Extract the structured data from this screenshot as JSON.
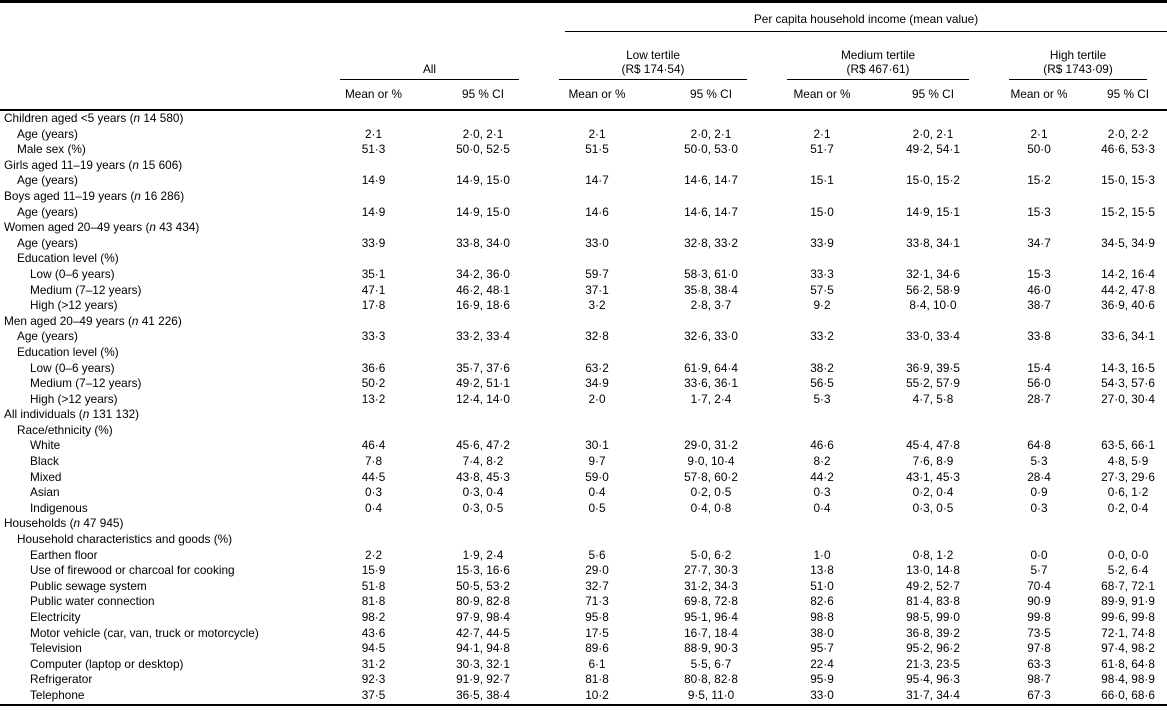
{
  "meta": {
    "n_symbol": "n"
  },
  "header": {
    "group_title": "Per capita household income (mean value)",
    "groups": [
      {
        "label": "All",
        "sub": ""
      },
      {
        "label": "Low tertile",
        "sub": "(R$ 174·54)"
      },
      {
        "label": "Medium tertile",
        "sub": "(R$ 467·61)"
      },
      {
        "label": "High tertile",
        "sub": "(R$ 1743·09)"
      }
    ],
    "stat_cols": [
      "Mean or %",
      "95 % CI"
    ]
  },
  "rows": [
    {
      "label": "Children aged <5 years",
      "n": "14 580",
      "indent": 0,
      "values": null
    },
    {
      "label": "Age (years)",
      "indent": 1,
      "values": [
        "2·1",
        "2·0, 2·1",
        "2·1",
        "2·0, 2·1",
        "2·1",
        "2·0, 2·1",
        "2·1",
        "2·0, 2·2"
      ]
    },
    {
      "label": "Male sex (%)",
      "indent": 1,
      "values": [
        "51·3",
        "50·0, 52·5",
        "51·5",
        "50·0, 53·0",
        "51·7",
        "49·2, 54·1",
        "50·0",
        "46·6, 53·3"
      ]
    },
    {
      "label": "Girls aged 11–19 years",
      "n": "15 606",
      "indent": 0,
      "values": null
    },
    {
      "label": "Age (years)",
      "indent": 1,
      "values": [
        "14·9",
        "14·9, 15·0",
        "14·7",
        "14·6, 14·7",
        "15·1",
        "15·0, 15·2",
        "15·2",
        "15·0, 15·3"
      ]
    },
    {
      "label": "Boys aged 11–19 years",
      "n": "16 286",
      "indent": 0,
      "values": null
    },
    {
      "label": "Age (years)",
      "indent": 1,
      "values": [
        "14·9",
        "14·9, 15·0",
        "14·6",
        "14·6, 14·7",
        "15·0",
        "14·9, 15·1",
        "15·3",
        "15·2, 15·5"
      ]
    },
    {
      "label": "Women aged 20–49 years",
      "n": "43 434",
      "indent": 0,
      "values": null
    },
    {
      "label": "Age (years)",
      "indent": 1,
      "values": [
        "33·9",
        "33·8, 34·0",
        "33·0",
        "32·8, 33·2",
        "33·9",
        "33·8, 34·1",
        "34·7",
        "34·5, 34·9"
      ]
    },
    {
      "label": "Education level (%)",
      "indent": 1,
      "values": null
    },
    {
      "label": "Low (0–6 years)",
      "indent": 2,
      "values": [
        "35·1",
        "34·2, 36·0",
        "59·7",
        "58·3, 61·0",
        "33·3",
        "32·1, 34·6",
        "15·3",
        "14·2, 16·4"
      ]
    },
    {
      "label": "Medium (7–12 years)",
      "indent": 2,
      "values": [
        "47·1",
        "46·2, 48·1",
        "37·1",
        "35·8, 38·4",
        "57·5",
        "56·2, 58·9",
        "46·0",
        "44·2, 47·8"
      ]
    },
    {
      "label": "High (>12 years)",
      "indent": 2,
      "values": [
        "17·8",
        "16·9, 18·6",
        "3·2",
        "2·8, 3·7",
        "9·2",
        "8·4, 10·0",
        "38·7",
        "36·9, 40·6"
      ]
    },
    {
      "label": "Men aged 20–49 years",
      "n": "41 226",
      "indent": 0,
      "values": null
    },
    {
      "label": "Age (years)",
      "indent": 1,
      "values": [
        "33·3",
        "33·2, 33·4",
        "32·8",
        "32·6, 33·0",
        "33·2",
        "33·0, 33·4",
        "33·8",
        "33·6, 34·1"
      ]
    },
    {
      "label": "Education level (%)",
      "indent": 1,
      "values": null
    },
    {
      "label": "Low (0–6 years)",
      "indent": 2,
      "values": [
        "36·6",
        "35·7, 37·6",
        "63·2",
        "61·9, 64·4",
        "38·2",
        "36·9, 39·5",
        "15·4",
        "14·3, 16·5"
      ]
    },
    {
      "label": "Medium (7–12 years)",
      "indent": 2,
      "values": [
        "50·2",
        "49·2, 51·1",
        "34·9",
        "33·6, 36·1",
        "56·5",
        "55·2, 57·9",
        "56·0",
        "54·3, 57·6"
      ]
    },
    {
      "label": "High (>12 years)",
      "indent": 2,
      "values": [
        "13·2",
        "12·4, 14·0",
        "2·0",
        "1·7, 2·4",
        "5·3",
        "4·7, 5·8",
        "28·7",
        "27·0, 30·4"
      ]
    },
    {
      "label": "All individuals",
      "n": "131 132",
      "indent": 0,
      "values": null
    },
    {
      "label": "Race/ethnicity (%)",
      "indent": 1,
      "values": null
    },
    {
      "label": "White",
      "indent": 2,
      "values": [
        "46·4",
        "45·6, 47·2",
        "30·1",
        "29·0, 31·2",
        "46·6",
        "45·4, 47·8",
        "64·8",
        "63·5, 66·1"
      ]
    },
    {
      "label": "Black",
      "indent": 2,
      "values": [
        "7·8",
        "7·4, 8·2",
        "9·7",
        "9·0, 10·4",
        "8·2",
        "7·6, 8·9",
        "5·3",
        "4·8, 5·9"
      ]
    },
    {
      "label": "Mixed",
      "indent": 2,
      "values": [
        "44·5",
        "43·8, 45·3",
        "59·0",
        "57·8, 60·2",
        "44·2",
        "43·1, 45·3",
        "28·4",
        "27·3, 29·6"
      ]
    },
    {
      "label": "Asian",
      "indent": 2,
      "values": [
        "0·3",
        "0·3, 0·4",
        "0·4",
        "0·2, 0·5",
        "0·3",
        "0·2, 0·4",
        "0·9",
        "0·6, 1·2"
      ]
    },
    {
      "label": "Indigenous",
      "indent": 2,
      "values": [
        "0·4",
        "0·3, 0·5",
        "0·5",
        "0·4, 0·8",
        "0·4",
        "0·3, 0·5",
        "0·3",
        "0·2, 0·4"
      ]
    },
    {
      "label": "Households",
      "n": "47 945",
      "indent": 0,
      "values": null
    },
    {
      "label": "Household characteristics and goods (%)",
      "indent": 1,
      "values": null
    },
    {
      "label": "Earthen floor",
      "indent": 2,
      "values": [
        "2·2",
        "1·9, 2·4",
        "5·6",
        "5·0, 6·2",
        "1·0",
        "0·8, 1·2",
        "0·0",
        "0·0, 0·0"
      ]
    },
    {
      "label": "Use of firewood or charcoal for cooking",
      "indent": 2,
      "values": [
        "15·9",
        "15·3, 16·6",
        "29·0",
        "27·7, 30·3",
        "13·8",
        "13·0, 14·8",
        "5·7",
        "5·2, 6·4"
      ]
    },
    {
      "label": "Public sewage system",
      "indent": 2,
      "values": [
        "51·8",
        "50·5, 53·2",
        "32·7",
        "31·2, 34·3",
        "51·0",
        "49·2, 52·7",
        "70·4",
        "68·7, 72·1"
      ]
    },
    {
      "label": "Public water connection",
      "indent": 2,
      "values": [
        "81·8",
        "80·9, 82·8",
        "71·3",
        "69·8, 72·8",
        "82·6",
        "81·4, 83·8",
        "90·9",
        "89·9, 91·9"
      ]
    },
    {
      "label": "Electricity",
      "indent": 2,
      "values": [
        "98·2",
        "97·9, 98·4",
        "95·8",
        "95·1, 96·4",
        "98·8",
        "98·5, 99·0",
        "99·8",
        "99·6, 99·8"
      ]
    },
    {
      "label": "Motor vehicle (car, van, truck or motorcycle)",
      "indent": 2,
      "values": [
        "43·6",
        "42·7, 44·5",
        "17·5",
        "16·7, 18·4",
        "38·0",
        "36·8, 39·2",
        "73·5",
        "72·1, 74·8"
      ]
    },
    {
      "label": "Television",
      "indent": 2,
      "values": [
        "94·5",
        "94·1, 94·8",
        "89·6",
        "88·9, 90·3",
        "95·7",
        "95·2, 96·2",
        "97·8",
        "97·4, 98·2"
      ]
    },
    {
      "label": "Computer (laptop or desktop)",
      "indent": 2,
      "values": [
        "31·2",
        "30·3, 32·1",
        "6·1",
        "5·5, 6·7",
        "22·4",
        "21·3, 23·5",
        "63·3",
        "61·8, 64·8"
      ]
    },
    {
      "label": "Refrigerator",
      "indent": 2,
      "values": [
        "92·3",
        "91·9, 92·7",
        "81·8",
        "80·8, 82·8",
        "95·9",
        "95·4, 96·3",
        "98·7",
        "98·4, 98·9"
      ]
    },
    {
      "label": "Telephone",
      "indent": 2,
      "values": [
        "37·5",
        "36·5, 38·4",
        "10·2",
        "9·5, 11·0",
        "33·0",
        "31·7, 34·4",
        "67·3",
        "66·0, 68·6"
      ]
    }
  ]
}
